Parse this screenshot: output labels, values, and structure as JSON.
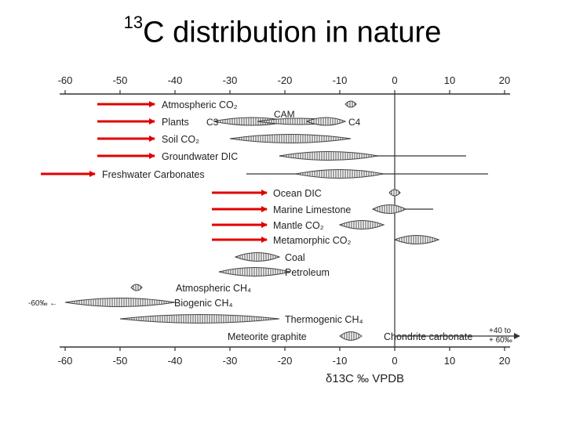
{
  "title": {
    "sup": "13",
    "main": "C distribution in nature"
  },
  "chart_data": {
    "type": "range",
    "title": "13C distribution in nature",
    "xlabel": "δ13C ‰ VPDB",
    "xlim": [
      -60,
      20
    ],
    "ticks": [
      -60,
      -50,
      -40,
      -30,
      -20,
      -10,
      0,
      10,
      20
    ],
    "annotations": {
      "plants_c3": "C3",
      "plants_cam": "CAM",
      "plants_c4": "C4",
      "left_overflow": "-60‰ ←",
      "right_overflow_1": "+40 to",
      "right_overflow_2": "+ 60‰"
    },
    "colors": {
      "arrow": "#e00000",
      "axis": "#333333",
      "hatch": "#444444"
    },
    "series": [
      {
        "name": "Atmospheric CO2",
        "label": "Atmospheric CO₂",
        "range": [
          -9,
          -7
        ],
        "tail": null,
        "arrow": true
      },
      {
        "name": "Plants",
        "label": "Plants",
        "range": [
          -33,
          -9
        ],
        "tail": null,
        "arrow": true
      },
      {
        "name": "Soil CO2",
        "label": "Soil CO₂",
        "range": [
          -30,
          -8
        ],
        "tail": null,
        "arrow": true
      },
      {
        "name": "Groundwater DIC",
        "label": "Groundwater DIC",
        "range": [
          -21,
          -3
        ],
        "tail": [
          -21,
          13
        ],
        "arrow": true
      },
      {
        "name": "Freshwater Carbonates",
        "label": "Freshwater Carbonates",
        "range": [
          -18,
          -2
        ],
        "tail": [
          -27,
          17
        ],
        "arrow": true
      },
      {
        "name": "Ocean DIC",
        "label": "Ocean DIC",
        "range": [
          -1,
          1
        ],
        "tail": null,
        "arrow": true
      },
      {
        "name": "Marine Limestone",
        "label": "Marine Limestone",
        "range": [
          -4,
          2
        ],
        "tail": [
          -4,
          7
        ],
        "arrow": true
      },
      {
        "name": "Mantle CO2",
        "label": "Mantle CO₂",
        "range": [
          -10,
          -2
        ],
        "tail": null,
        "arrow": true
      },
      {
        "name": "Metamorphic CO2",
        "label": "Metamorphic CO₂",
        "range": [
          0,
          8
        ],
        "tail": null,
        "arrow": true
      },
      {
        "name": "Coal",
        "label": "Coal",
        "range": [
          -29,
          -21
        ],
        "tail": null,
        "arrow": false
      },
      {
        "name": "Petroleum",
        "label": "Petroleum",
        "range": [
          -32,
          -19
        ],
        "tail": null,
        "arrow": false
      },
      {
        "name": "Atmospheric CH4",
        "label": "Atmospheric CH₄",
        "range": [
          -48,
          -46
        ],
        "tail": null,
        "arrow": false
      },
      {
        "name": "Biogenic CH4",
        "label": "Biogenic CH₄",
        "range": [
          -60,
          -40
        ],
        "tail": null,
        "arrow": false
      },
      {
        "name": "Thermogenic CH4",
        "label": "Thermogenic CH₄",
        "range": [
          -50,
          -21
        ],
        "tail": null,
        "arrow": false
      },
      {
        "name": "Meteorite graphite",
        "label": "Meteorite graphite",
        "range": [
          -10,
          -6
        ],
        "tail": null,
        "arrow": false
      },
      {
        "name": "Chondrite carbonate",
        "label": "Chondrite carbonate",
        "range": [
          20,
          20
        ],
        "tail": null,
        "arrow": false
      }
    ]
  }
}
